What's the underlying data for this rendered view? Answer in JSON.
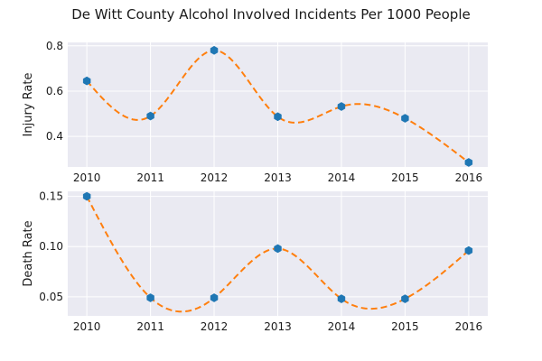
{
  "figure": {
    "title": "De Witt County Alcohol Involved Incidents Per 1000 People"
  },
  "chart_data": [
    {
      "type": "line",
      "ylabel": "Injury Rate",
      "x": [
        2010,
        2011,
        2012,
        2013,
        2014,
        2015,
        2016
      ],
      "xlim": [
        2009.7,
        2016.3
      ],
      "ylim": [
        0.265,
        0.815
      ],
      "yticks": [
        0.4,
        0.6,
        0.8
      ],
      "ytick_labels": [
        "0.4",
        "0.6",
        "0.8"
      ],
      "xtick_labels": [
        "2010",
        "2011",
        "2012",
        "2013",
        "2014",
        "2015",
        "2016"
      ],
      "grid": true,
      "series": [
        {
          "values": [
            0.645,
            0.49,
            0.78,
            0.487,
            0.532,
            0.48,
            0.285
          ],
          "marker_color": "#1f77b4",
          "curve_color": "#ff7f0e",
          "style": "markers with dashed smooth curve"
        }
      ]
    },
    {
      "type": "line",
      "ylabel": "Death Rate",
      "x": [
        2010,
        2011,
        2012,
        2013,
        2014,
        2015,
        2016
      ],
      "xlim": [
        2009.7,
        2016.3
      ],
      "ylim": [
        0.031,
        0.155
      ],
      "yticks": [
        0.05,
        0.1,
        0.15
      ],
      "ytick_labels": [
        "0.05",
        "0.10",
        "0.15"
      ],
      "xtick_labels": [
        "2010",
        "2011",
        "2012",
        "2013",
        "2014",
        "2015",
        "2016"
      ],
      "grid": true,
      "series": [
        {
          "values": [
            0.15,
            0.049,
            0.049,
            0.098,
            0.048,
            0.048,
            0.096
          ],
          "marker_color": "#1f77b4",
          "curve_color": "#ff7f0e",
          "style": "markers with dashed smooth curve"
        }
      ]
    }
  ],
  "style": {
    "plot_background": "#eaeaf2",
    "grid_color": "#ffffff"
  }
}
